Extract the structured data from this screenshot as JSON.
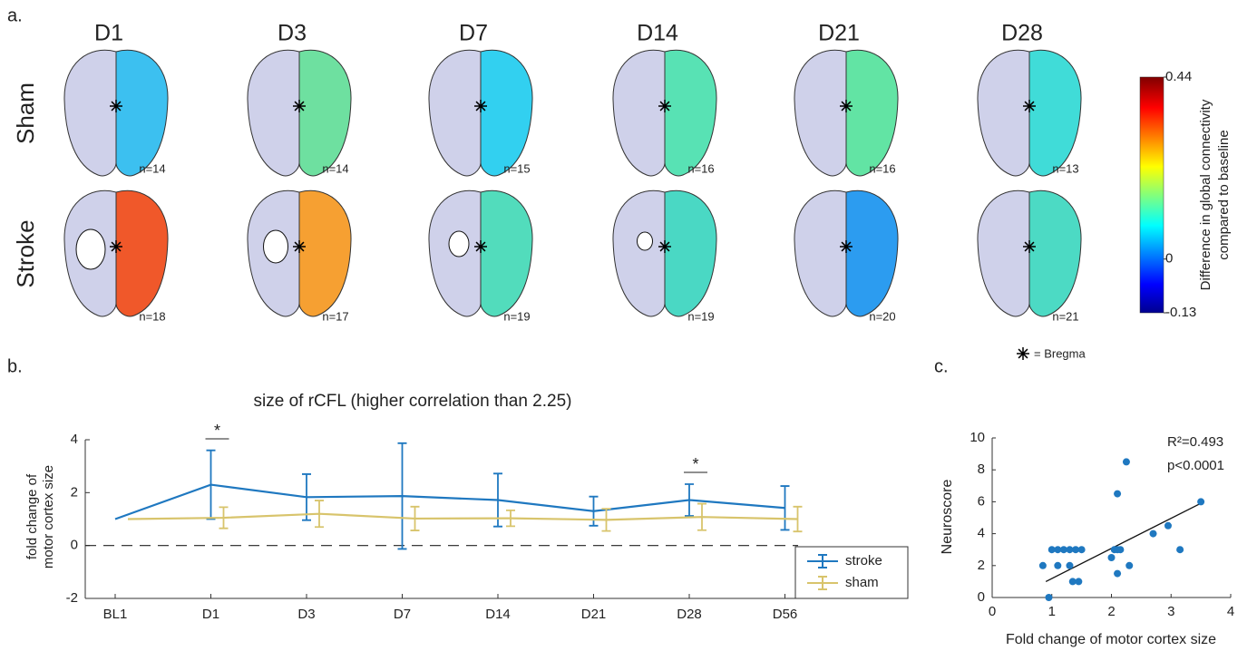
{
  "panel_labels": [
    "a.",
    "b.",
    "c."
  ],
  "maps": {
    "columns": [
      "D1",
      "D3",
      "D7",
      "D14",
      "D21",
      "D28"
    ],
    "rows": [
      {
        "label": "Sham",
        "cells": [
          {
            "n": "n=14",
            "color": "#3cc0f0"
          },
          {
            "n": "n=14",
            "color": "#6ee0a0"
          },
          {
            "n": "n=15",
            "color": "#32d0f0"
          },
          {
            "n": "n=16",
            "color": "#58e2b4"
          },
          {
            "n": "n=16",
            "color": "#62e4a4"
          },
          {
            "n": "n=13",
            "color": "#40dcd8"
          }
        ]
      },
      {
        "label": "Stroke",
        "cells": [
          {
            "n": "n=18",
            "color": "#f0582a"
          },
          {
            "n": "n=17",
            "color": "#f6a032"
          },
          {
            "n": "n=19",
            "color": "#52dcbc"
          },
          {
            "n": "n=19",
            "color": "#4ad8c4"
          },
          {
            "n": "n=20",
            "color": "#2c9cf0"
          },
          {
            "n": "n=21",
            "color": "#4cdac4"
          }
        ]
      }
    ],
    "colorbar": {
      "label_lines": [
        "Difference in global connectivity",
        "compared to baseline"
      ],
      "lim": [
        -0.13,
        0.44
      ],
      "ticks": [
        -0.13,
        0,
        0.44
      ]
    },
    "bregma_label": "= Bregma"
  },
  "chart_data": [
    {
      "type": "line",
      "title": "size of rCFL (higher correlation than 2.25)",
      "y_label_lines": [
        "fold change of",
        "motor cortex size"
      ],
      "categories": [
        "BL1",
        "D1",
        "D3",
        "D7",
        "D14",
        "D21",
        "D28",
        "D56"
      ],
      "series": [
        {
          "name": "stroke",
          "color": "#1f78c0",
          "values": [
            1,
            2.3,
            1.83,
            1.87,
            1.72,
            1.3,
            1.72,
            1.42
          ],
          "errors": [
            null,
            1.3,
            0.87,
            2.0,
            1.0,
            0.55,
            0.6,
            0.83
          ]
        },
        {
          "name": "sham",
          "color": "#d8c46c",
          "values": [
            1,
            1.05,
            1.2,
            1.02,
            1.03,
            0.97,
            1.08,
            1.0
          ],
          "errors": [
            null,
            0.4,
            0.5,
            0.45,
            0.3,
            0.42,
            0.5,
            0.47
          ]
        }
      ],
      "ylim": [
        -2,
        4
      ],
      "yticks": [
        -2,
        0,
        2,
        4
      ],
      "reference_line": 0,
      "annotations": [
        "*",
        "*"
      ],
      "legend": "lower right"
    },
    {
      "type": "scatter",
      "color": "#1f78c0",
      "x": [
        0.85,
        0.95,
        1.0,
        1.1,
        1.2,
        1.3,
        1.4,
        1.5,
        1.1,
        1.3,
        1.35,
        1.45,
        2.0,
        2.05,
        2.1,
        2.15,
        2.1,
        2.25,
        2.1,
        2.3,
        2.7,
        2.95,
        3.15,
        3.5
      ],
      "y": [
        2,
        0,
        3,
        3,
        3,
        3,
        3,
        3,
        2,
        2,
        1,
        1,
        2.5,
        3,
        3,
        3,
        6.5,
        8.5,
        1.5,
        2,
        4,
        4.5,
        3,
        6
      ],
      "fit": {
        "x": [
          0.9,
          3.55
        ],
        "y": [
          1,
          6
        ]
      },
      "xlim": [
        0,
        4
      ],
      "xticks": [
        0,
        1,
        2,
        3,
        4
      ],
      "ylim": [
        0,
        10
      ],
      "yticks": [
        0,
        2,
        4,
        6,
        8,
        10
      ],
      "x_label": "Fold change of motor cortex size",
      "y_label": "Neuroscore",
      "annotations": [
        "R²=0.493",
        "p<0.0001"
      ]
    }
  ]
}
